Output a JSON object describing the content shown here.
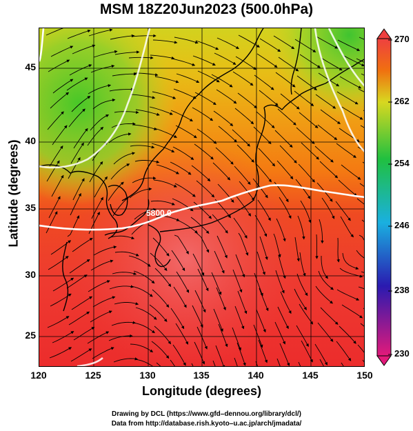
{
  "title": "MSM 18Z20Jun2023 (500.0hPa)",
  "axes": {
    "xlabel": "Longitude (degrees)",
    "ylabel": "Latitude  (degrees)",
    "xticks": [
      "120",
      "125",
      "130",
      "135",
      "140",
      "145",
      "150"
    ],
    "yticks": [
      "45",
      "40",
      "35",
      "30",
      "25"
    ],
    "xlim": [
      120,
      150
    ],
    "ylim": [
      22.4,
      47.6
    ]
  },
  "colorbar": {
    "labels": [
      "270",
      "262",
      "254",
      "246",
      "238",
      "230"
    ],
    "range": [
      230,
      270
    ],
    "colors": [
      "#e21a7a",
      "#2a1ab0",
      "#1ab0e0",
      "#20c040",
      "#d8d820",
      "#f07010",
      "#ee4040"
    ]
  },
  "contour": {
    "label": "5800.0"
  },
  "credits": {
    "line1": "Drawing by DCL (https://www.gfd–dennou.org/library/dcl/)",
    "line2": "Data from http://database.rish.kyoto–u.ac.jp/arch/jmadata/"
  }
}
